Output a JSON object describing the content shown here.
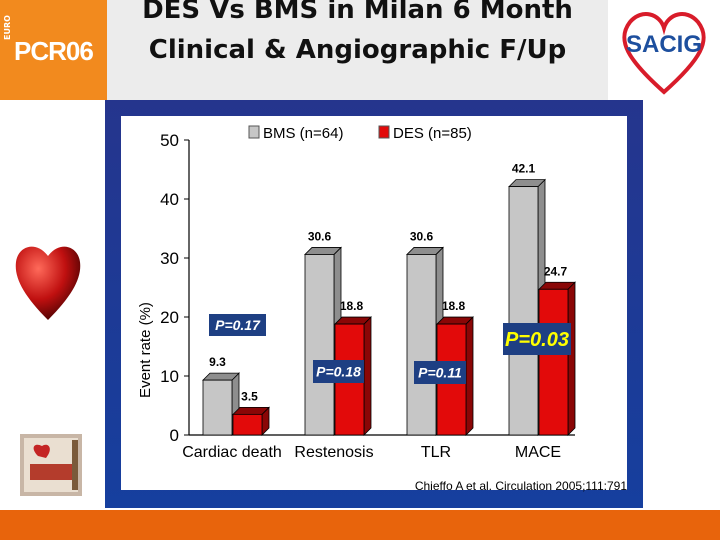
{
  "header": {
    "title": "DES Vs BMS in Milan 6 Month Clinical & Angiographic F/Up",
    "pcr_euro": "EURO",
    "pcr_text": "PCR06",
    "sacig_text": "SACIG"
  },
  "colors": {
    "bms": "#c6c6c6",
    "des": "#e20a0a",
    "panel": "#1d3e9e",
    "pcr_orange": "#f28a1e",
    "bottom_bar": "#e8640c"
  },
  "citation": "Chieffo A et al. Circulation 2005;111:791",
  "chart_data": {
    "type": "bar",
    "categories": [
      "Cardiac death",
      "Restenosis",
      "TLR",
      "MACE"
    ],
    "series": [
      {
        "name": "BMS (n=64)",
        "values": [
          9.3,
          30.6,
          30.6,
          42.1
        ]
      },
      {
        "name": "DES (n=85)",
        "values": [
          3.5,
          18.8,
          18.8,
          24.7
        ]
      }
    ],
    "bms_labels": [
      "9.3",
      "30.6",
      "30.6",
      "42.1"
    ],
    "des_labels": [
      "3.5",
      "18.8",
      "18.8",
      "24.7"
    ],
    "p_values": [
      "P=0.17",
      "P=0.18",
      "P=0.11",
      "P=0.03"
    ],
    "ylabel": "Event rate (%)",
    "yticks": [
      "0",
      "10",
      "20",
      "30",
      "40",
      "50"
    ],
    "ylim": [
      0,
      50
    ],
    "legend_placement": "top",
    "grid": false
  }
}
